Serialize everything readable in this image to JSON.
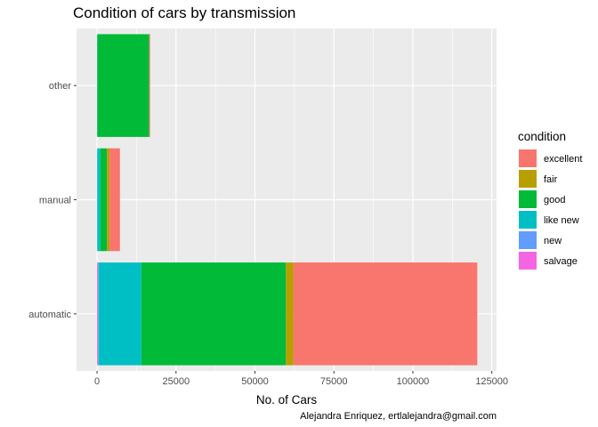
{
  "chart_data": {
    "type": "bar",
    "orientation": "horizontal",
    "stacked": true,
    "title": "Condition of cars by transmission",
    "xlabel": "No. of Cars",
    "ylabel": "",
    "caption": "Alejandra Enriquez, ertlalejandra@gmail.com",
    "categories": [
      "automatic",
      "manual",
      "other"
    ],
    "xlim": [
      -6500,
      126500
    ],
    "xticks": [
      0,
      25000,
      50000,
      75000,
      100000,
      125000
    ],
    "grid": true,
    "legend": {
      "title": "condition",
      "position": "right"
    },
    "series": [
      {
        "name": "salvage",
        "color": "#F564E3",
        "values": [
          300,
          30,
          5
        ]
      },
      {
        "name": "new",
        "color": "#619CFF",
        "values": [
          200,
          20,
          5
        ]
      },
      {
        "name": "like new",
        "color": "#00BFC4",
        "values": [
          13500,
          1000,
          80
        ]
      },
      {
        "name": "good",
        "color": "#00BA38",
        "values": [
          45800,
          2100,
          16400
        ]
      },
      {
        "name": "fair",
        "color": "#B79F00",
        "values": [
          2400,
          800,
          60
        ]
      },
      {
        "name": "excellent",
        "color": "#F8766D",
        "values": [
          58200,
          3300,
          250
        ]
      }
    ],
    "legend_order": [
      "excellent",
      "fair",
      "good",
      "like new",
      "new",
      "salvage"
    ]
  }
}
